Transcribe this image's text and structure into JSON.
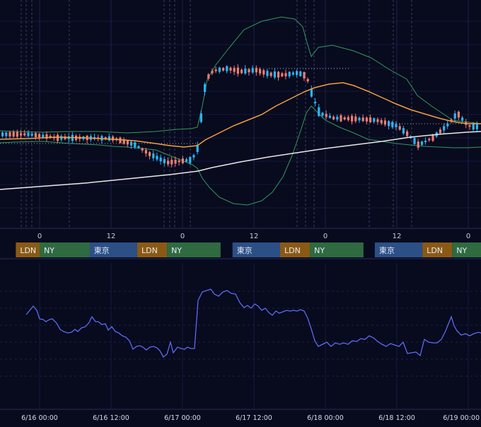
{
  "chart_data": {
    "type": "candlestick",
    "price_panel": {
      "overlays": [
        {
          "kind": "bollinger-band-upper",
          "color": "#2f9a5c"
        },
        {
          "kind": "bollinger-band-lower",
          "color": "#2f9a5c"
        },
        {
          "kind": "moving-average",
          "color": "#f2a03c"
        },
        {
          "kind": "moving-average-long",
          "color": "#e8e8e8"
        }
      ],
      "hour_ticks": [
        {
          "hour": 42,
          "label": "0"
        },
        {
          "hour": 54,
          "label": "12"
        },
        {
          "hour": 66,
          "label": "0"
        },
        {
          "hour": 78,
          "label": "12"
        },
        {
          "hour": 90,
          "label": "0"
        },
        {
          "hour": 102,
          "label": "12"
        },
        {
          "hour": 114,
          "label": "0"
        }
      ],
      "session_labels": {
        "tokyo": "東京",
        "london": "LDN",
        "newyork": "NY"
      },
      "session_colors": {
        "tokyo": "#2c4f86",
        "london": "#8a5a14",
        "newyork": "#2f6a40"
      },
      "session_blocks": [
        {
          "start_hour": 38,
          "tokyo_hours": 0,
          "london_hours": 4,
          "newyork_hours": 12
        },
        {
          "start_hour": 50.4,
          "tokyo_hours": 8,
          "london_hours": 5,
          "newyork_hours": 9
        },
        {
          "start_hour": 74.4,
          "tokyo_hours": 8,
          "london_hours": 5,
          "newyork_hours": 9
        },
        {
          "start_hour": 98.3,
          "tokyo_hours": 8,
          "london_hours": 5,
          "newyork_hours": 6
        }
      ],
      "up_color": "#29b6f6",
      "down_color": "#f07c72"
    },
    "oscillator_panel": {
      "line_color": "#5a6cf0",
      "series": [
        [
          37,
          445
        ],
        [
          43,
          438
        ],
        [
          47,
          433
        ],
        [
          52,
          439
        ],
        [
          56,
          451
        ],
        [
          61,
          452
        ],
        [
          65,
          455
        ],
        [
          70,
          452
        ],
        [
          74,
          451
        ],
        [
          80,
          457
        ],
        [
          85,
          466
        ],
        [
          90,
          469
        ],
        [
          96,
          471
        ],
        [
          101,
          470
        ],
        [
          106,
          466
        ],
        [
          110,
          469
        ],
        [
          115,
          464
        ],
        [
          121,
          462
        ],
        [
          126,
          456
        ],
        [
          130,
          448
        ],
        [
          135,
          455
        ],
        [
          139,
          455
        ],
        [
          144,
          459
        ],
        [
          149,
          458
        ],
        [
          153,
          467
        ],
        [
          158,
          462
        ],
        [
          163,
          469
        ],
        [
          168,
          471
        ],
        [
          173,
          475
        ],
        [
          178,
          477
        ],
        [
          183,
          482
        ],
        [
          188,
          494
        ],
        [
          193,
          490
        ],
        [
          198,
          489
        ],
        [
          202,
          491
        ],
        [
          207,
          495
        ],
        [
          212,
          491
        ],
        [
          217,
          490
        ],
        [
          222,
          492
        ],
        [
          226,
          496
        ],
        [
          231,
          505
        ],
        [
          236,
          501
        ],
        [
          241,
          484
        ],
        [
          245,
          499
        ],
        [
          251,
          491
        ],
        [
          256,
          493
        ],
        [
          261,
          494
        ],
        [
          265,
          491
        ],
        [
          270,
          493
        ],
        [
          275,
          493
        ],
        [
          280,
          425
        ],
        [
          286,
          413
        ],
        [
          292,
          411
        ],
        [
          298,
          409
        ],
        [
          303,
          416
        ],
        [
          309,
          419
        ],
        [
          315,
          413
        ],
        [
          321,
          411
        ],
        [
          327,
          415
        ],
        [
          333,
          416
        ],
        [
          339,
          428
        ],
        [
          345,
          435
        ],
        [
          350,
          432
        ],
        [
          355,
          436
        ],
        [
          360,
          430
        ],
        [
          365,
          433
        ],
        [
          370,
          439
        ],
        [
          375,
          436
        ],
        [
          380,
          442
        ],
        [
          385,
          446
        ],
        [
          390,
          440
        ],
        [
          395,
          443
        ],
        [
          400,
          441
        ],
        [
          405,
          439
        ],
        [
          410,
          440
        ],
        [
          415,
          439
        ],
        [
          420,
          440
        ],
        [
          425,
          438
        ],
        [
          430,
          440
        ],
        [
          435,
          450
        ],
        [
          440,
          465
        ],
        [
          445,
          482
        ],
        [
          450,
          490
        ],
        [
          456,
          487
        ],
        [
          462,
          484
        ],
        [
          468,
          490
        ],
        [
          474,
          485
        ],
        [
          480,
          487
        ],
        [
          486,
          485
        ],
        [
          492,
          487
        ],
        [
          498,
          482
        ],
        [
          504,
          483
        ],
        [
          510,
          479
        ],
        [
          516,
          480
        ],
        [
          522,
          475
        ],
        [
          528,
          478
        ],
        [
          534,
          483
        ],
        [
          540,
          487
        ],
        [
          546,
          490
        ],
        [
          552,
          486
        ],
        [
          558,
          488
        ],
        [
          564,
          490
        ],
        [
          570,
          484
        ],
        [
          576,
          500
        ],
        [
          582,
          499
        ],
        [
          588,
          498
        ],
        [
          594,
          503
        ],
        [
          600,
          480
        ],
        [
          606,
          484
        ],
        [
          612,
          485
        ],
        [
          618,
          485
        ],
        [
          624,
          480
        ],
        [
          630,
          468
        ],
        [
          634,
          458
        ],
        [
          638,
          448
        ],
        [
          642,
          461
        ],
        [
          646,
          468
        ],
        [
          652,
          474
        ],
        [
          658,
          472
        ],
        [
          664,
          475
        ],
        [
          670,
          472
        ],
        [
          676,
          470
        ],
        [
          680,
          471
        ]
      ]
    },
    "time_axis": {
      "labels": [
        {
          "hour": 42,
          "label": "6/16 00:00"
        },
        {
          "hour": 54,
          "label": "6/16 12:00"
        },
        {
          "hour": 66,
          "label": "6/17 00:00"
        },
        {
          "hour": 78,
          "label": "6/17 12:00"
        },
        {
          "hour": 90,
          "label": "6/18 00:00"
        },
        {
          "hour": 102,
          "label": "6/18 12:00"
        },
        {
          "hour": 114,
          "label": "6/19 00:00"
        }
      ]
    },
    "price_series": {
      "bb_upper": [
        [
          0,
          185
        ],
        [
          20,
          186
        ],
        [
          60,
          187
        ],
        [
          100,
          186
        ],
        [
          140,
          186
        ],
        [
          160,
          187
        ],
        [
          180,
          188
        ],
        [
          220,
          186
        ],
        [
          250,
          183
        ],
        [
          270,
          182
        ],
        [
          279,
          180
        ],
        [
          286,
          150
        ],
        [
          293,
          112
        ],
        [
          305,
          92
        ],
        [
          322,
          70
        ],
        [
          345,
          42
        ],
        [
          370,
          30
        ],
        [
          398,
          24
        ],
        [
          417,
          27
        ],
        [
          428,
          38
        ],
        [
          434,
          60
        ],
        [
          440,
          80
        ],
        [
          450,
          67
        ],
        [
          470,
          64
        ],
        [
          500,
          72
        ],
        [
          525,
          82
        ],
        [
          550,
          98
        ],
        [
          575,
          112
        ],
        [
          590,
          135
        ],
        [
          610,
          150
        ],
        [
          640,
          170
        ],
        [
          680,
          175
        ]
      ],
      "bb_lower": [
        [
          0,
          202
        ],
        [
          20,
          201
        ],
        [
          60,
          200
        ],
        [
          100,
          203
        ],
        [
          140,
          205
        ],
        [
          160,
          207
        ],
        [
          180,
          208
        ],
        [
          220,
          212
        ],
        [
          240,
          220
        ],
        [
          260,
          228
        ],
        [
          272,
          233
        ],
        [
          279,
          238
        ],
        [
          286,
          252
        ],
        [
          296,
          265
        ],
        [
          310,
          279
        ],
        [
          330,
          288
        ],
        [
          350,
          290
        ],
        [
          370,
          284
        ],
        [
          385,
          272
        ],
        [
          400,
          250
        ],
        [
          413,
          220
        ],
        [
          425,
          185
        ],
        [
          433,
          160
        ],
        [
          440,
          150
        ],
        [
          450,
          160
        ],
        [
          460,
          170
        ],
        [
          480,
          180
        ],
        [
          500,
          188
        ],
        [
          520,
          197
        ],
        [
          540,
          200
        ],
        [
          560,
          203
        ],
        [
          580,
          205
        ],
        [
          600,
          207
        ],
        [
          620,
          208
        ],
        [
          640,
          209
        ],
        [
          660,
          209
        ],
        [
          680,
          208
        ]
      ],
      "ma": [
        [
          0,
          197
        ],
        [
          40,
          196
        ],
        [
          80,
          194
        ],
        [
          120,
          195
        ],
        [
          160,
          197
        ],
        [
          190,
          199
        ],
        [
          220,
          203
        ],
        [
          240,
          206
        ],
        [
          260,
          208
        ],
        [
          279,
          206
        ],
        [
          290,
          198
        ],
        [
          310,
          188
        ],
        [
          330,
          178
        ],
        [
          350,
          170
        ],
        [
          370,
          162
        ],
        [
          390,
          150
        ],
        [
          410,
          140
        ],
        [
          430,
          130
        ],
        [
          445,
          124
        ],
        [
          465,
          119
        ],
        [
          485,
          117
        ],
        [
          500,
          121
        ],
        [
          520,
          129
        ],
        [
          540,
          138
        ],
        [
          560,
          147
        ],
        [
          580,
          155
        ],
        [
          600,
          161
        ],
        [
          620,
          167
        ],
        [
          640,
          172
        ],
        [
          660,
          175
        ],
        [
          680,
          175
        ]
      ],
      "long_ma": [
        [
          0,
          268
        ],
        [
          40,
          265
        ],
        [
          80,
          262
        ],
        [
          120,
          259
        ],
        [
          160,
          255
        ],
        [
          200,
          251
        ],
        [
          240,
          247
        ],
        [
          280,
          242
        ],
        [
          300,
          237
        ],
        [
          340,
          229
        ],
        [
          380,
          222
        ],
        [
          420,
          216
        ],
        [
          460,
          210
        ],
        [
          500,
          205
        ],
        [
          540,
          200
        ],
        [
          580,
          194
        ],
        [
          620,
          190
        ],
        [
          660,
          187
        ],
        [
          680,
          186
        ]
      ]
    }
  }
}
